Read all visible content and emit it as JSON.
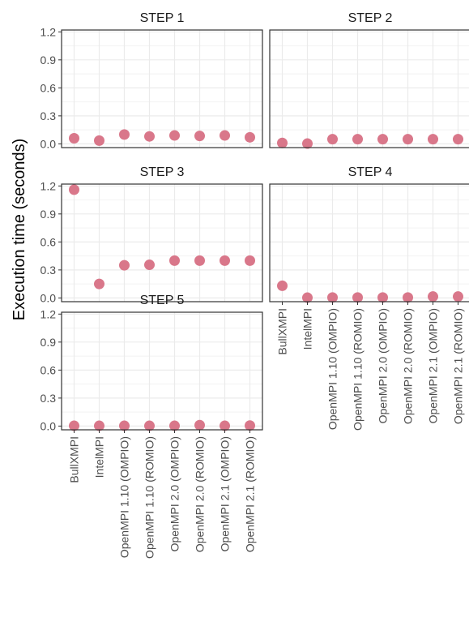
{
  "chart_data": {
    "type": "scatter",
    "ylabel": "Execution time (seconds)",
    "xlabel": "",
    "categories": [
      "BullXMPI",
      "IntelMPI",
      "OpenMPI 1.10 (OMPIO)",
      "OpenMPI 1.10 (ROMIO)",
      "OpenMPI 2.0 (OMPIO)",
      "OpenMPI 2.0 (ROMIO)",
      "OpenMPI 2.1 (OMPIO)",
      "OpenMPI 2.1 (ROMIO)"
    ],
    "ylim": [
      -0.04,
      1.22
    ],
    "yticks": [
      0.0,
      0.3,
      0.6,
      0.9,
      1.2
    ],
    "ytick_labels": [
      "0.0",
      "0.3",
      "0.6",
      "0.9",
      "1.2"
    ],
    "grid": true,
    "point_color": "#d9778a",
    "panels": [
      {
        "title": "STEP 1",
        "values": [
          0.06,
          0.035,
          0.1,
          0.08,
          0.09,
          0.085,
          0.09,
          0.07
        ]
      },
      {
        "title": "STEP 2",
        "values": [
          0.01,
          0.003,
          0.05,
          0.05,
          0.05,
          0.05,
          0.05,
          0.05
        ]
      },
      {
        "title": "STEP 3",
        "values": [
          1.16,
          0.15,
          0.35,
          0.355,
          0.4,
          0.4,
          0.4,
          0.4
        ]
      },
      {
        "title": "STEP 4",
        "values": [
          0.13,
          0.003,
          0.005,
          0.005,
          0.005,
          0.005,
          0.015,
          0.015
        ]
      },
      {
        "title": "STEP 5",
        "values": [
          0.003,
          0.003,
          0.003,
          0.003,
          0.003,
          0.01,
          0.003,
          0.006
        ]
      }
    ]
  }
}
